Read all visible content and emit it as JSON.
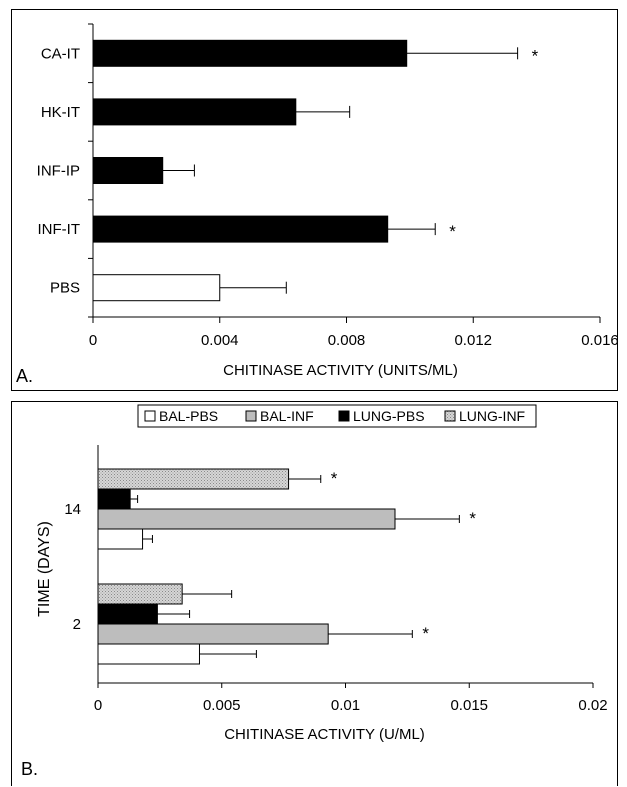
{
  "chart_data": [
    {
      "type": "bar",
      "orientation": "horizontal",
      "panel_label": "A.",
      "xlabel": "CHITINASE ACTIVITY (UNITS/ML)",
      "ylabel": "",
      "xlim": [
        0,
        0.016
      ],
      "x_ticks": [
        "0",
        "0.004",
        "0.008",
        "0.012",
        "0.016"
      ],
      "grid": false,
      "categories": [
        "CA-IT",
        "HK-IT",
        "INF-IP",
        "INF-IT",
        "PBS"
      ],
      "series": [
        {
          "values": [
            0.0099,
            0.0064,
            0.0022,
            0.0093,
            0.004
          ],
          "errors": [
            0.0035,
            0.0017,
            0.001,
            0.0015,
            0.0021
          ],
          "colors": [
            "#000000",
            "#000000",
            "#000000",
            "#000000",
            "#ffffff"
          ],
          "significance": [
            "*",
            "",
            "",
            "*",
            ""
          ]
        }
      ]
    },
    {
      "type": "bar",
      "orientation": "horizontal",
      "panel_label": "B.",
      "xlabel": "CHITINASE ACTIVITY (U/ML)",
      "ylabel": "TIME (DAYS)",
      "xlim": [
        0,
        0.02
      ],
      "x_ticks": [
        "0",
        "0.005",
        "0.01",
        "0.015",
        "0.02"
      ],
      "grid": false,
      "legend_position": "top",
      "categories": [
        "14",
        "2"
      ],
      "series": [
        {
          "name": "BAL-PBS",
          "color": "#ffffff",
          "values": [
            0.0018,
            0.0041
          ],
          "errors": [
            0.0004,
            0.0023
          ],
          "significance": [
            "",
            ""
          ]
        },
        {
          "name": "BAL-INF",
          "color": "#bdbdbd",
          "values": [
            0.012,
            0.0093
          ],
          "errors": [
            0.0026,
            0.0034
          ],
          "significance": [
            "*",
            "*"
          ]
        },
        {
          "name": "LUNG-PBS",
          "color": "#000000",
          "values": [
            0.0013,
            0.0024
          ],
          "errors": [
            0.0003,
            0.0013
          ],
          "significance": [
            "",
            ""
          ]
        },
        {
          "name": "LUNG-INF",
          "color": "#c8c8c8",
          "pattern": "dotted",
          "values": [
            0.0077,
            0.0034
          ],
          "errors": [
            0.0013,
            0.002
          ],
          "significance": [
            "*",
            ""
          ]
        }
      ]
    }
  ]
}
